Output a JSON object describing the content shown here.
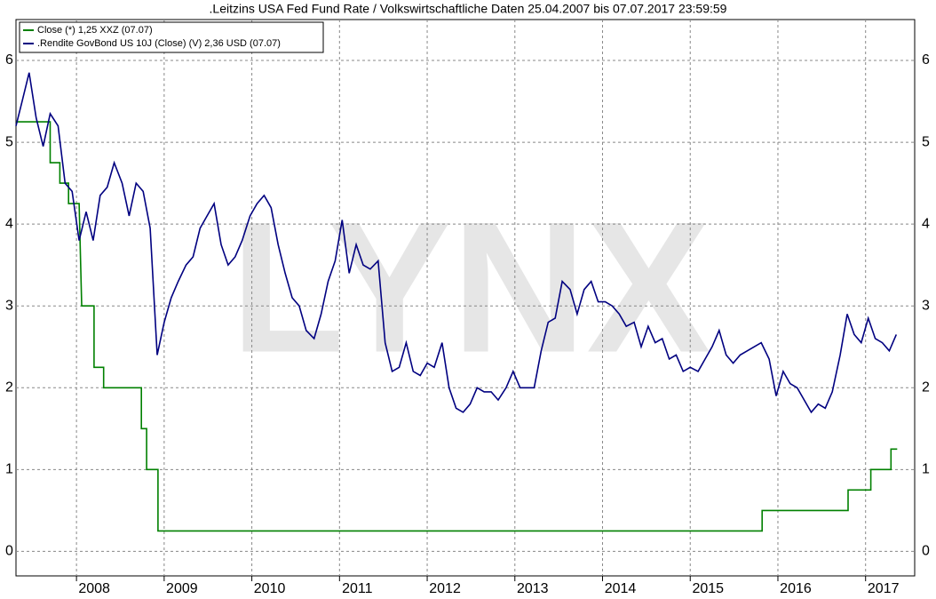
{
  "chart_data": {
    "type": "line",
    "title": ".Leitzins USA Fed Fund Rate / Volkswirtschaftliche Daten 25.04.2007 bis 07.07.2017 23:59:59",
    "watermark": "LYNX",
    "xlim": [
      2007.31,
      2017.56
    ],
    "xticks": [
      2008,
      2009,
      2010,
      2011,
      2012,
      2013,
      2014,
      2015,
      2016,
      2017
    ],
    "ylim": [
      -0.3,
      6.5
    ],
    "yticks": [
      0,
      1,
      2,
      3,
      4,
      5,
      6
    ],
    "grid": true,
    "legend": "top-left",
    "series": [
      {
        "name": "Close (*) 1,25 XXZ (07.07)",
        "color": "#008000",
        "x": [
          2007.31,
          2007.7,
          2007.7,
          2007.81,
          2007.81,
          2007.91,
          2007.91,
          2008.03,
          2008.06,
          2008.2,
          2008.2,
          2008.31,
          2008.31,
          2008.74,
          2008.74,
          2008.8,
          2008.8,
          2008.93,
          2008.93,
          2015.82,
          2015.82,
          2016.8,
          2016.8,
          2017.06,
          2017.06,
          2017.29,
          2017.29,
          2017.36
        ],
        "values": [
          5.25,
          5.25,
          4.75,
          4.75,
          4.5,
          4.5,
          4.25,
          4.25,
          3.0,
          3.0,
          2.25,
          2.25,
          2.0,
          2.0,
          1.5,
          1.5,
          1.0,
          1.0,
          0.25,
          0.25,
          0.5,
          0.5,
          0.75,
          0.75,
          1.0,
          1.0,
          1.25,
          1.25
        ]
      },
      {
        "name": ".Rendite GovBond US 10J (Close) (V) 2,36 USD (07.07)",
        "color": "#000080",
        "x": [
          2007.31,
          2007.38,
          2007.46,
          2007.54,
          2007.62,
          2007.7,
          2007.79,
          2007.87,
          2007.95,
          2008.03,
          2008.11,
          2008.19,
          2008.27,
          2008.35,
          2008.43,
          2008.52,
          2008.6,
          2008.68,
          2008.76,
          2008.84,
          2008.92,
          2009.0,
          2009.08,
          2009.16,
          2009.25,
          2009.33,
          2009.41,
          2009.49,
          2009.57,
          2009.65,
          2009.73,
          2009.81,
          2009.89,
          2009.98,
          2010.06,
          2010.14,
          2010.22,
          2010.3,
          2010.38,
          2010.46,
          2010.54,
          2010.62,
          2010.71,
          2010.79,
          2010.87,
          2010.95,
          2011.03,
          2011.11,
          2011.19,
          2011.27,
          2011.35,
          2011.44,
          2011.52,
          2011.6,
          2011.68,
          2011.76,
          2011.84,
          2011.92,
          2012.0,
          2012.08,
          2012.17,
          2012.25,
          2012.33,
          2012.41,
          2012.49,
          2012.57,
          2012.65,
          2012.73,
          2012.81,
          2012.9,
          2012.98,
          2013.06,
          2013.14,
          2013.22,
          2013.3,
          2013.38,
          2013.46,
          2013.54,
          2013.63,
          2013.71,
          2013.79,
          2013.87,
          2013.95,
          2014.03,
          2014.11,
          2014.19,
          2014.27,
          2014.36,
          2014.44,
          2014.52,
          2014.6,
          2014.68,
          2014.76,
          2014.84,
          2014.92,
          2015.0,
          2015.09,
          2015.17,
          2015.25,
          2015.33,
          2015.41,
          2015.49,
          2015.57,
          2015.65,
          2015.73,
          2015.81,
          2015.9,
          2015.98,
          2016.06,
          2016.14,
          2016.22,
          2016.3,
          2016.38,
          2016.46,
          2016.54,
          2016.62,
          2016.71,
          2016.79,
          2016.87,
          2016.95,
          2017.03,
          2017.11,
          2017.19,
          2017.27,
          2017.35
        ],
        "values": [
          5.2,
          5.5,
          5.85,
          5.3,
          4.95,
          5.35,
          5.2,
          4.5,
          4.4,
          3.8,
          4.15,
          3.8,
          4.35,
          4.45,
          4.75,
          4.5,
          4.1,
          4.5,
          4.4,
          3.95,
          2.4,
          2.8,
          3.1,
          3.3,
          3.5,
          3.6,
          3.95,
          4.1,
          4.25,
          3.75,
          3.5,
          3.6,
          3.8,
          4.1,
          4.25,
          4.35,
          4.2,
          3.75,
          3.4,
          3.1,
          3.0,
          2.7,
          2.6,
          2.9,
          3.3,
          3.55,
          4.05,
          3.4,
          3.75,
          3.5,
          3.45,
          3.55,
          2.55,
          2.2,
          2.25,
          2.55,
          2.2,
          2.15,
          2.3,
          2.25,
          2.55,
          2.0,
          1.75,
          1.7,
          1.8,
          2.0,
          1.95,
          1.95,
          1.85,
          2.0,
          2.2,
          2.0,
          2.0,
          2.0,
          2.45,
          2.8,
          2.85,
          3.3,
          3.2,
          2.9,
          3.2,
          3.3,
          3.05,
          3.05,
          3.0,
          2.9,
          2.75,
          2.8,
          2.5,
          2.75,
          2.55,
          2.6,
          2.35,
          2.4,
          2.2,
          2.25,
          2.2,
          2.35,
          2.5,
          2.7,
          2.4,
          2.3,
          2.4,
          2.45,
          2.5,
          2.55,
          2.35,
          1.9,
          2.2,
          2.05,
          2.0,
          1.85,
          1.7,
          1.8,
          1.75,
          1.95,
          2.4,
          2.9,
          2.65,
          2.55,
          2.85,
          2.6,
          2.55,
          2.45,
          2.65
        ]
      }
    ]
  }
}
